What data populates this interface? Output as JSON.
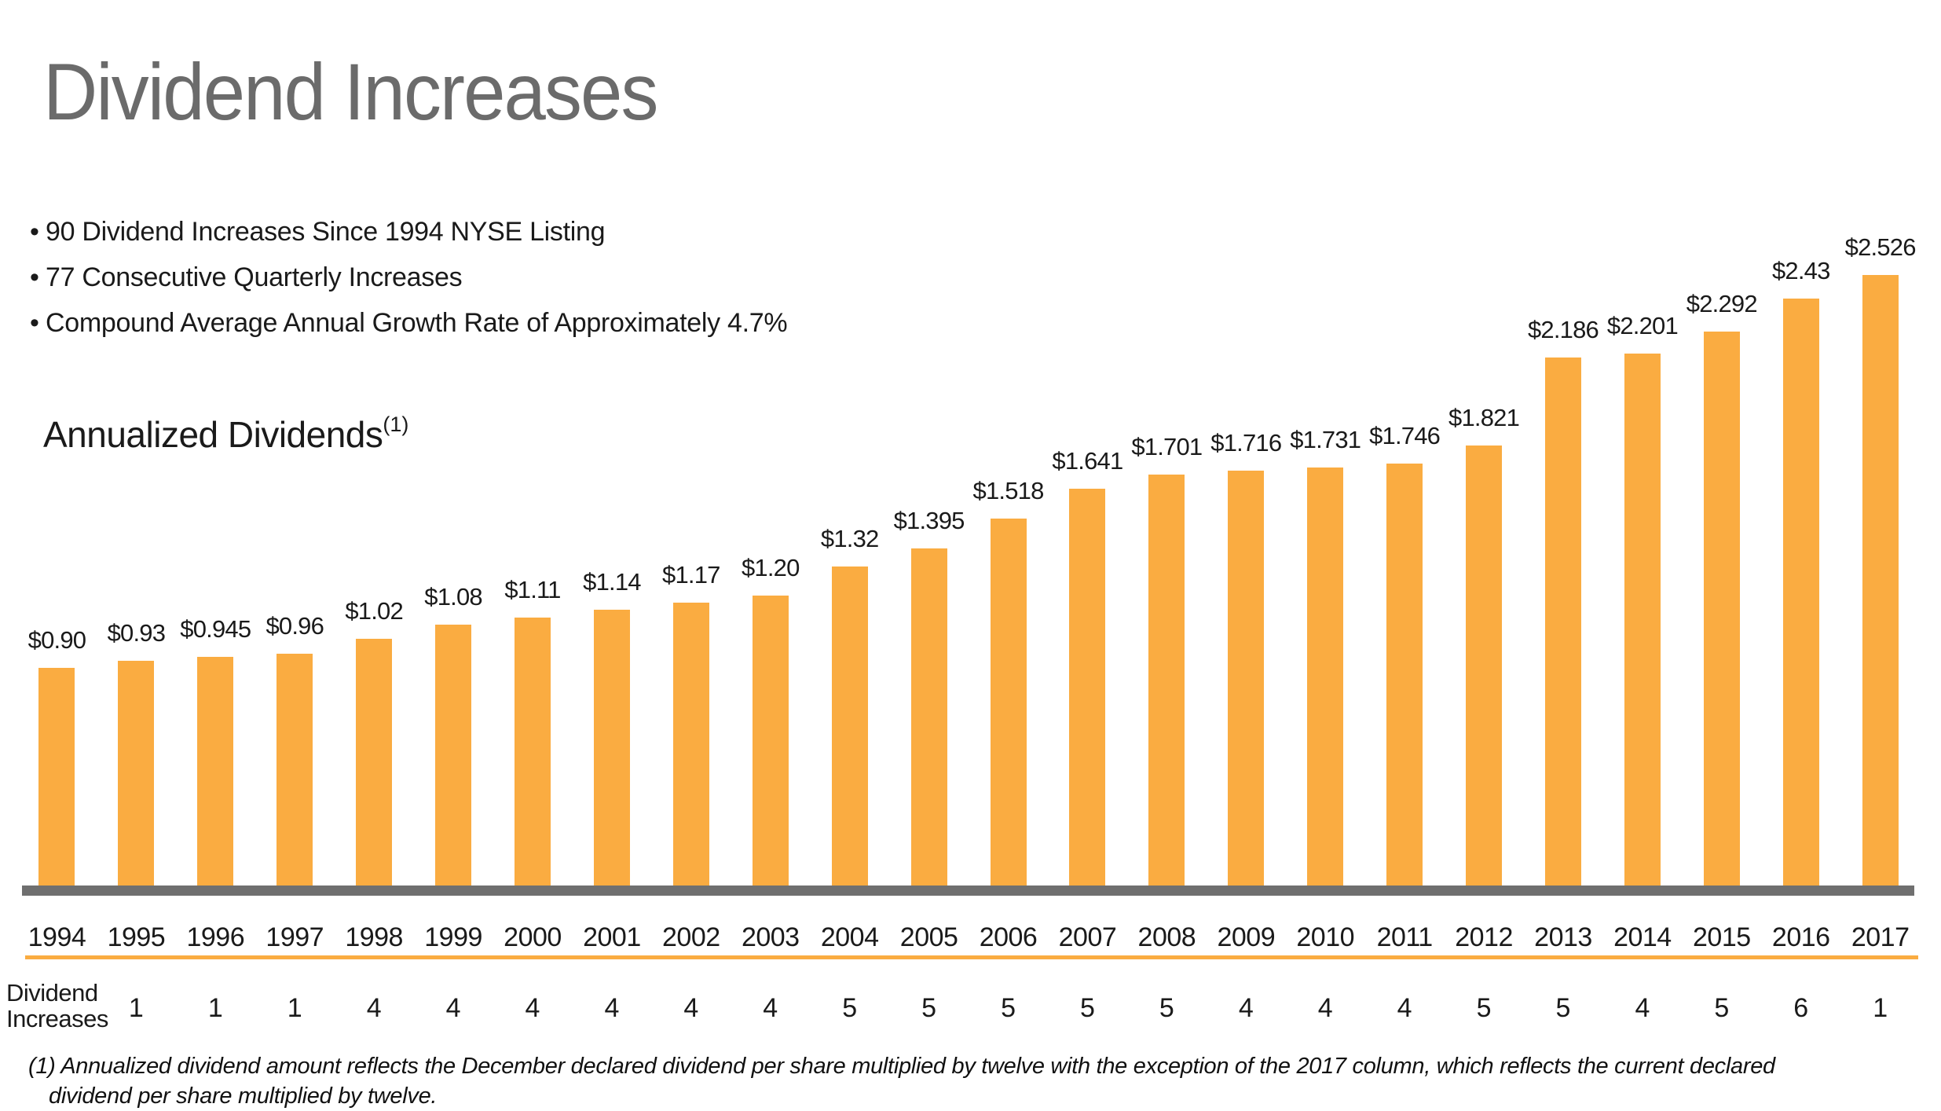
{
  "header": {
    "title": "Dividend Increases"
  },
  "bullets": {
    "glyph": "•",
    "items": [
      "90 Dividend Increases Since 1994 NYSE Listing",
      "77 Consecutive Quarterly Increases",
      "Compound Average Annual Growth Rate of Approximately 4.7%"
    ]
  },
  "section": {
    "subtitle": "Annualized Dividends",
    "subtitle_superscript": "(1)"
  },
  "chart_data": {
    "type": "bar",
    "title": "Annualized Dividends",
    "xlabel": "",
    "ylabel": "",
    "ylim": [
      0,
      2.6
    ],
    "grid": false,
    "legend": false,
    "bar_color": "#FAAC41",
    "axis_color": "#6F6F6F",
    "categories": [
      "1994",
      "1995",
      "1996",
      "1997",
      "1998",
      "1999",
      "2000",
      "2001",
      "2002",
      "2003",
      "2004",
      "2005",
      "2006",
      "2007",
      "2008",
      "2009",
      "2010",
      "2011",
      "2012",
      "2013",
      "2014",
      "2015",
      "2016",
      "2017"
    ],
    "values": [
      0.9,
      0.93,
      0.945,
      0.96,
      1.02,
      1.08,
      1.11,
      1.14,
      1.17,
      1.2,
      1.32,
      1.395,
      1.518,
      1.641,
      1.701,
      1.716,
      1.731,
      1.746,
      1.821,
      2.186,
      2.201,
      2.292,
      2.43,
      2.526
    ],
    "value_labels": [
      "$0.90",
      "$0.93",
      "$0.945",
      "$0.96",
      "$1.02",
      "$1.08",
      "$1.11",
      "$1.14",
      "$1.17",
      "$1.20",
      "$1.32",
      "$1.395",
      "$1.518",
      "$1.641",
      "$1.701",
      "$1.716",
      "$1.731",
      "$1.746",
      "$1.821",
      "$2.186",
      "$2.201",
      "$2.292",
      "$2.43",
      "$2.526"
    ]
  },
  "increases_row": {
    "label_line1": "Dividend",
    "label_line2": "Increases",
    "values": [
      "",
      "1",
      "1",
      "1",
      "4",
      "4",
      "4",
      "4",
      "4",
      "4",
      "5",
      "5",
      "5",
      "5",
      "5",
      "4",
      "4",
      "4",
      "5",
      "5",
      "4",
      "5",
      "6",
      "1"
    ]
  },
  "footnote": {
    "line1": "(1) Annualized dividend amount reflects the December declared dividend per share multiplied by twelve with the exception of the 2017 column, which reflects the current declared",
    "line2": "dividend per share multiplied by twelve."
  },
  "colors": {
    "bar_orange": "#FAAC41",
    "axis_gray": "#6F6F6F",
    "title_gray": "#6B6B6B",
    "text_black": "#1A1A1A"
  }
}
